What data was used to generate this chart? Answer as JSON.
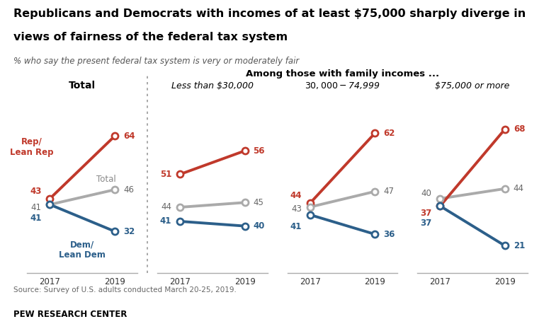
{
  "title_line1": "Republicans and Democrats with incomes of at least $75,000 sharply diverge in",
  "title_line2": "views of fairness of the federal tax system",
  "subtitle": "% who say the present federal tax system is very or moderately fair",
  "source": "Source: Survey of U.S. adults conducted March 20-25, 2019.",
  "footer": "PEW RESEARCH CENTER",
  "among_label": "Among those with family incomes ...",
  "panels": [
    {
      "label": "Total",
      "label_style": "bold",
      "rep": [
        43,
        64
      ],
      "total": [
        41,
        46
      ],
      "dem": [
        41,
        32
      ]
    },
    {
      "label": "Less than $30,000",
      "label_style": "italic",
      "rep": [
        51,
        56
      ],
      "total": [
        44,
        45
      ],
      "dem": [
        41,
        40
      ]
    },
    {
      "label": "$30,000-$74,999",
      "label_style": "italic",
      "rep": [
        44,
        62
      ],
      "total": [
        43,
        47
      ],
      "dem": [
        41,
        36
      ]
    },
    {
      "label": "$75,000 or more",
      "label_style": "italic",
      "rep": [
        37,
        68
      ],
      "total": [
        40,
        44
      ],
      "dem": [
        37,
        21
      ]
    }
  ],
  "colors": {
    "rep": "#c0392b",
    "total": "#aaaaaa",
    "dem": "#2c5f8a"
  },
  "years": [
    "2017",
    "2019"
  ],
  "bg_color": "#ffffff"
}
